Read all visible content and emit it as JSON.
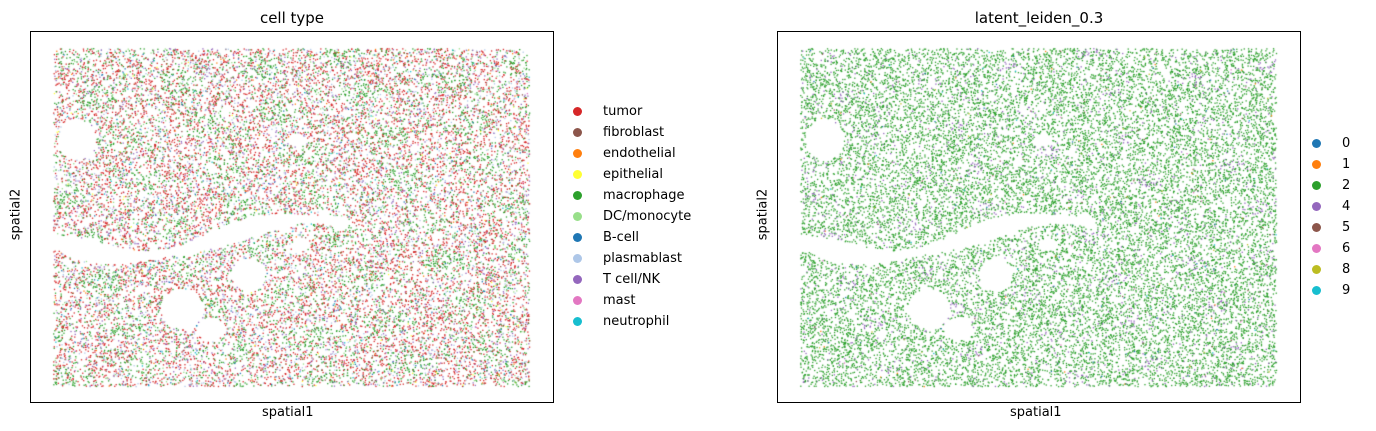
{
  "chart_data": [
    {
      "type": "scatter",
      "title": "cell type",
      "xlabel": "spatial1",
      "ylabel": "spatial2",
      "xticks": [],
      "yticks": [],
      "legend_placement": "right",
      "categories": [
        {
          "name": "tumor",
          "color": "#d62728",
          "share": 0.46
        },
        {
          "name": "fibroblast",
          "color": "#8c564b",
          "share": 0.02
        },
        {
          "name": "endothelial",
          "color": "#ff7f0e",
          "share": 0.01
        },
        {
          "name": "epithelial",
          "color": "#ffff33",
          "share": 0.005
        },
        {
          "name": "macrophage",
          "color": "#2ca02c",
          "share": 0.22
        },
        {
          "name": "DC/monocyte",
          "color": "#98df8a",
          "share": 0.05
        },
        {
          "name": "B-cell",
          "color": "#1f77b4",
          "share": 0.02
        },
        {
          "name": "plasmablast",
          "color": "#aec7e8",
          "share": 0.09
        },
        {
          "name": "T cell/NK",
          "color": "#9467bd",
          "share": 0.11
        },
        {
          "name": "mast",
          "color": "#e377c2",
          "share": 0.005
        },
        {
          "name": "neutrophil",
          "color": "#17becf",
          "share": 0.01
        }
      ]
    },
    {
      "type": "scatter",
      "title": "latent_leiden_0.3",
      "xlabel": "spatial1",
      "ylabel": "spatial2",
      "xticks": [],
      "yticks": [],
      "legend_placement": "right",
      "categories": [
        {
          "name": "0",
          "color": "#1f77b4",
          "share": 0.003
        },
        {
          "name": "1",
          "color": "#ff7f0e",
          "share": 0.003
        },
        {
          "name": "2",
          "color": "#2ca02c",
          "share": 0.93
        },
        {
          "name": "4",
          "color": "#9467bd",
          "share": 0.055
        },
        {
          "name": "5",
          "color": "#8c564b",
          "share": 0.003
        },
        {
          "name": "6",
          "color": "#e377c2",
          "share": 0.002
        },
        {
          "name": "8",
          "color": "#bcbd22",
          "share": 0.002
        },
        {
          "name": "9",
          "color": "#17becf",
          "share": 0.002
        }
      ]
    }
  ]
}
